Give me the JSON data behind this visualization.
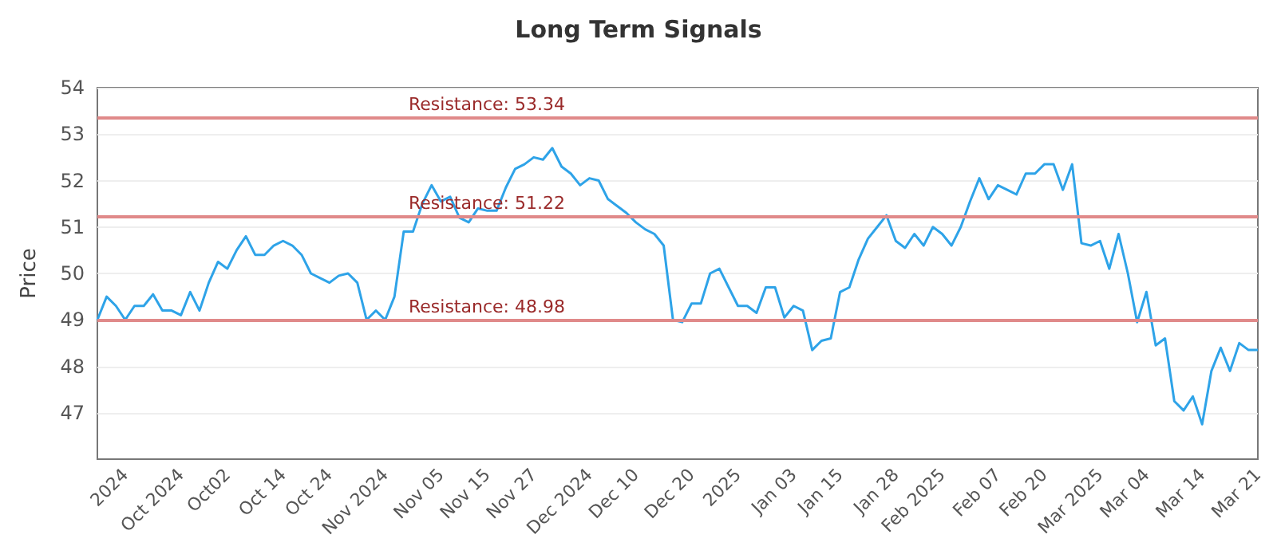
{
  "chart_data": {
    "type": "line",
    "title": "Long Term Signals",
    "ylabel": "Price",
    "categories": [
      null,
      null,
      null,
      "2024",
      null,
      null,
      null,
      null,
      null,
      "Oct 2024",
      null,
      null,
      null,
      null,
      "Oct02",
      null,
      null,
      null,
      null,
      null,
      "Oct 14",
      null,
      null,
      null,
      null,
      "Oct 24",
      null,
      null,
      null,
      null,
      null,
      "Nov 2024",
      null,
      null,
      null,
      null,
      null,
      "Nov 05",
      null,
      null,
      null,
      null,
      "Nov 15",
      null,
      null,
      null,
      null,
      "Nov 27",
      null,
      null,
      null,
      null,
      null,
      "Dec 2024",
      null,
      null,
      null,
      null,
      "Dec 10",
      null,
      null,
      null,
      null,
      null,
      "Dec 20",
      null,
      null,
      null,
      null,
      "2025",
      null,
      null,
      null,
      null,
      null,
      "Jan 03",
      null,
      null,
      null,
      null,
      "Jan 15",
      null,
      null,
      null,
      null,
      null,
      "Jan 28",
      null,
      null,
      null,
      null,
      "Feb 2025",
      null,
      null,
      null,
      null,
      null,
      "Feb 07",
      null,
      null,
      null,
      null,
      "Feb 20",
      null,
      null,
      null,
      null,
      null,
      "Mar 2025",
      null,
      null,
      null,
      null,
      "Mar 04",
      null,
      null,
      null,
      null,
      null,
      "Mar 14",
      null,
      null,
      null,
      null,
      null,
      "Mar 21"
    ],
    "series": [
      {
        "color": "#2ea3e8",
        "values": [
          49.0,
          49.5,
          49.3,
          49.0,
          49.3,
          49.3,
          49.55,
          49.2,
          49.2,
          49.1,
          49.6,
          49.2,
          49.8,
          50.25,
          50.1,
          50.5,
          50.8,
          50.4,
          50.4,
          50.6,
          50.7,
          50.6,
          50.4,
          50.0,
          49.9,
          49.8,
          49.95,
          50.0,
          49.8,
          49.0,
          49.2,
          49.0,
          49.5,
          50.9,
          50.9,
          51.5,
          51.9,
          51.55,
          51.65,
          51.2,
          51.1,
          51.4,
          51.35,
          51.35,
          51.85,
          52.25,
          52.35,
          52.5,
          52.45,
          52.7,
          52.3,
          52.15,
          51.9,
          52.05,
          52.0,
          51.6,
          51.45,
          51.3,
          51.1,
          50.95,
          50.85,
          50.6,
          49.0,
          48.95,
          49.35,
          49.35,
          50.0,
          50.1,
          49.7,
          49.3,
          49.3,
          49.15,
          49.7,
          49.7,
          49.05,
          49.3,
          49.2,
          48.35,
          48.55,
          48.6,
          49.6,
          49.7,
          50.3,
          50.75,
          51.0,
          51.25,
          50.7,
          50.55,
          50.85,
          50.6,
          51.0,
          50.85,
          50.6,
          51.0,
          51.55,
          52.05,
          51.6,
          51.9,
          51.8,
          51.7,
          52.15,
          52.15,
          52.35,
          52.35,
          51.8,
          52.35,
          50.65,
          50.6,
          50.7,
          50.1,
          50.85,
          50.0,
          48.95,
          49.6,
          48.45,
          48.6,
          47.25,
          47.05,
          47.35,
          46.75,
          47.9,
          48.4,
          47.9,
          48.5,
          48.35,
          48.35
        ]
      }
    ],
    "ylim": [
      46,
      54
    ],
    "yticks": [
      47,
      48,
      49,
      50,
      51,
      52,
      53,
      54
    ],
    "grid": "y",
    "marker": "none",
    "line_style": "solid",
    "ref_lines": [
      {
        "axis": "y",
        "value": 53.34,
        "label": "Resistance: 53.34",
        "color": "#e08a8a"
      },
      {
        "axis": "y",
        "value": 51.22,
        "label": "Resistance: 51.22",
        "color": "#e08a8a"
      },
      {
        "axis": "y",
        "value": 48.98,
        "label": "Resistance: 48.98",
        "color": "#e08a8a"
      }
    ]
  }
}
